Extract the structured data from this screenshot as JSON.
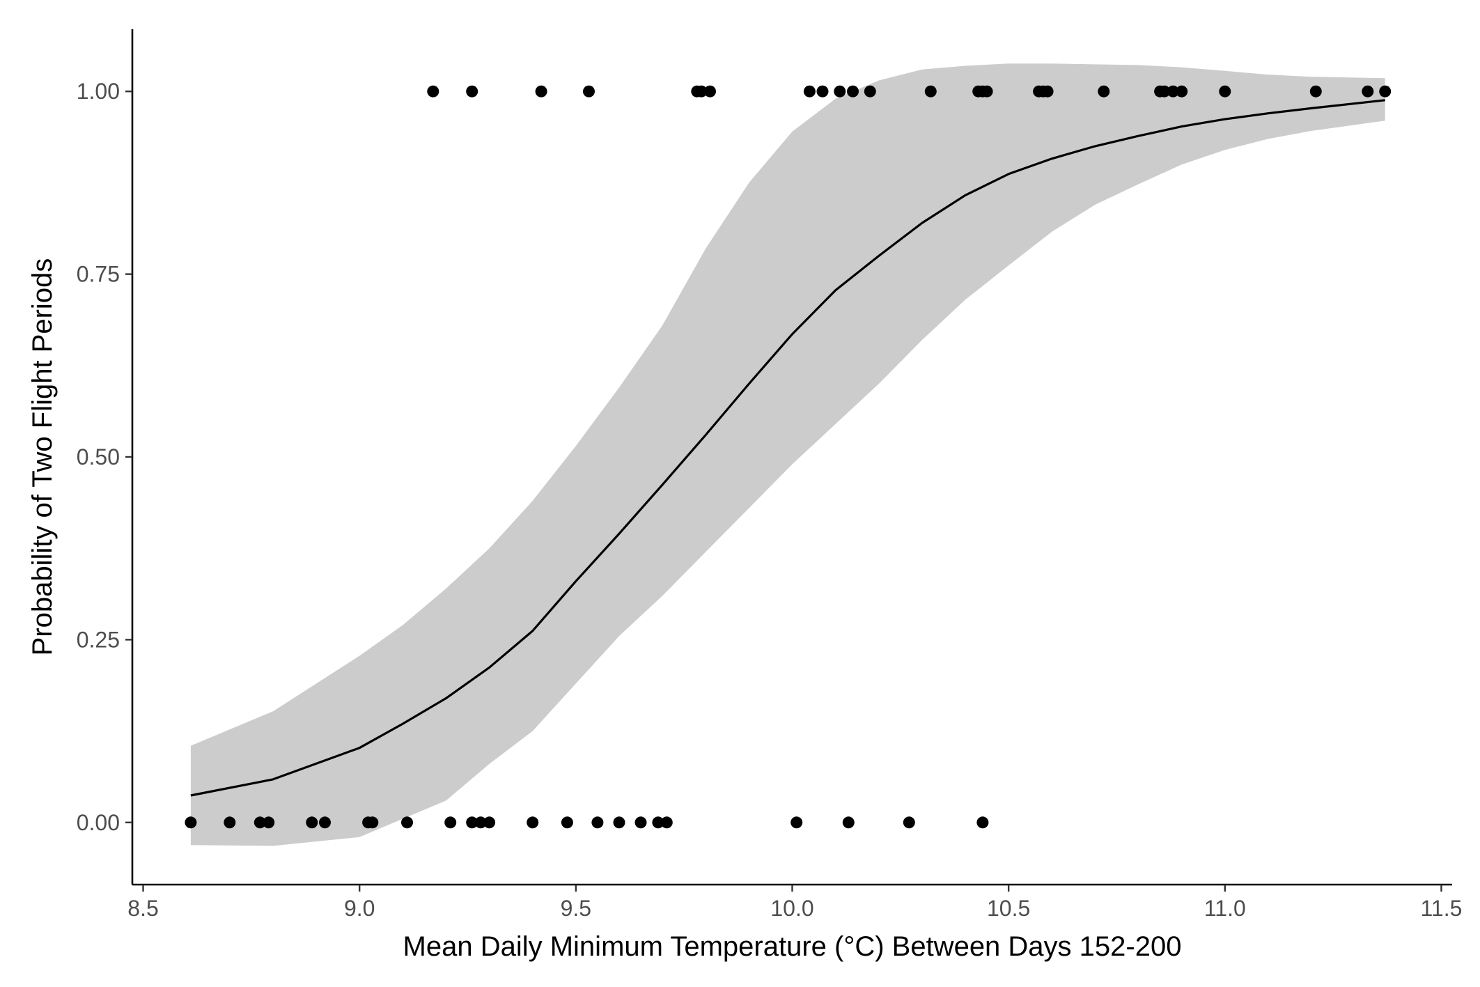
{
  "chart_data": {
    "type": "scatter",
    "title": "",
    "xlabel": "Mean Daily Minimum Temperature (°C) Between Days 152-200",
    "ylabel": "Probability of Two Flight Periods",
    "xlim": [
      8.475,
      11.525
    ],
    "ylim": [
      -0.085,
      1.085
    ],
    "x_ticks": [
      8.5,
      9.0,
      9.5,
      10.0,
      10.5,
      11.0,
      11.5
    ],
    "x_tick_labels": [
      "8.5",
      "9.0",
      "9.5",
      "10.0",
      "10.5",
      "11.0",
      "11.5"
    ],
    "y_ticks": [
      0,
      0.25,
      0.5,
      0.75,
      1.0
    ],
    "y_tick_labels": [
      "0.00",
      "0.25",
      "0.50",
      "0.75",
      "1.00"
    ],
    "grid": false,
    "series": [
      {
        "kind": "points",
        "points": [
          {
            "x": 8.61,
            "y": 0
          },
          {
            "x": 8.7,
            "y": 0
          },
          {
            "x": 8.77,
            "y": 0
          },
          {
            "x": 8.79,
            "y": 0
          },
          {
            "x": 8.89,
            "y": 0
          },
          {
            "x": 8.92,
            "y": 0
          },
          {
            "x": 9.02,
            "y": 0
          },
          {
            "x": 9.03,
            "y": 0
          },
          {
            "x": 9.11,
            "y": 0
          },
          {
            "x": 9.21,
            "y": 0
          },
          {
            "x": 9.26,
            "y": 0
          },
          {
            "x": 9.28,
            "y": 0
          },
          {
            "x": 9.3,
            "y": 0
          },
          {
            "x": 9.4,
            "y": 0
          },
          {
            "x": 9.48,
            "y": 0
          },
          {
            "x": 9.55,
            "y": 0
          },
          {
            "x": 9.6,
            "y": 0
          },
          {
            "x": 9.65,
            "y": 0
          },
          {
            "x": 9.69,
            "y": 0
          },
          {
            "x": 9.71,
            "y": 0
          },
          {
            "x": 10.01,
            "y": 0
          },
          {
            "x": 10.13,
            "y": 0
          },
          {
            "x": 10.27,
            "y": 0
          },
          {
            "x": 10.44,
            "y": 0
          },
          {
            "x": 9.17,
            "y": 1
          },
          {
            "x": 9.26,
            "y": 1
          },
          {
            "x": 9.42,
            "y": 1
          },
          {
            "x": 9.53,
            "y": 1
          },
          {
            "x": 9.78,
            "y": 1
          },
          {
            "x": 9.79,
            "y": 1
          },
          {
            "x": 9.81,
            "y": 1
          },
          {
            "x": 10.04,
            "y": 1
          },
          {
            "x": 10.07,
            "y": 1
          },
          {
            "x": 10.11,
            "y": 1
          },
          {
            "x": 10.14,
            "y": 1
          },
          {
            "x": 10.18,
            "y": 1
          },
          {
            "x": 10.32,
            "y": 1
          },
          {
            "x": 10.43,
            "y": 1
          },
          {
            "x": 10.44,
            "y": 1
          },
          {
            "x": 10.45,
            "y": 1
          },
          {
            "x": 10.57,
            "y": 1
          },
          {
            "x": 10.58,
            "y": 1
          },
          {
            "x": 10.59,
            "y": 1
          },
          {
            "x": 10.72,
            "y": 1
          },
          {
            "x": 10.85,
            "y": 1
          },
          {
            "x": 10.86,
            "y": 1
          },
          {
            "x": 10.88,
            "y": 1
          },
          {
            "x": 10.9,
            "y": 1
          },
          {
            "x": 11.0,
            "y": 1
          },
          {
            "x": 11.21,
            "y": 1
          },
          {
            "x": 11.33,
            "y": 1
          },
          {
            "x": 11.37,
            "y": 1
          }
        ]
      },
      {
        "kind": "fit-line",
        "x": [
          8.61,
          8.8,
          9.0,
          9.1,
          9.2,
          9.3,
          9.4,
          9.5,
          9.6,
          9.7,
          9.8,
          9.9,
          10.0,
          10.1,
          10.2,
          10.3,
          10.4,
          10.5,
          10.6,
          10.7,
          10.8,
          10.9,
          11.0,
          11.1,
          11.2,
          11.37
        ],
        "y": [
          0.037,
          0.059,
          0.102,
          0.135,
          0.17,
          0.212,
          0.262,
          0.33,
          0.395,
          0.462,
          0.53,
          0.6,
          0.668,
          0.728,
          0.775,
          0.82,
          0.858,
          0.887,
          0.908,
          0.925,
          0.939,
          0.952,
          0.962,
          0.97,
          0.977,
          0.988
        ]
      },
      {
        "kind": "confidence-band",
        "x": [
          8.61,
          8.8,
          9.0,
          9.1,
          9.2,
          9.3,
          9.4,
          9.5,
          9.6,
          9.7,
          9.8,
          9.9,
          10.0,
          10.1,
          10.2,
          10.3,
          10.4,
          10.5,
          10.6,
          10.7,
          10.8,
          10.9,
          11.0,
          11.1,
          11.2,
          11.37
        ],
        "lower": [
          -0.031,
          -0.032,
          -0.02,
          0.005,
          0.03,
          0.08,
          0.125,
          0.19,
          0.255,
          0.31,
          0.37,
          0.43,
          0.49,
          0.545,
          0.6,
          0.66,
          0.715,
          0.762,
          0.808,
          0.845,
          0.873,
          0.9,
          0.92,
          0.935,
          0.946,
          0.96
        ],
        "upper": [
          0.105,
          0.152,
          0.228,
          0.27,
          0.32,
          0.375,
          0.44,
          0.515,
          0.595,
          0.68,
          0.785,
          0.875,
          0.945,
          0.99,
          1.015,
          1.03,
          1.035,
          1.038,
          1.038,
          1.037,
          1.036,
          1.033,
          1.028,
          1.023,
          1.02,
          1.018
        ]
      }
    ],
    "colors": {
      "points": "#000000",
      "line": "#000000",
      "band": "#cccccc",
      "axis": "#000000",
      "tick_text": "#4d4d4d",
      "title_text": "#000000"
    }
  }
}
